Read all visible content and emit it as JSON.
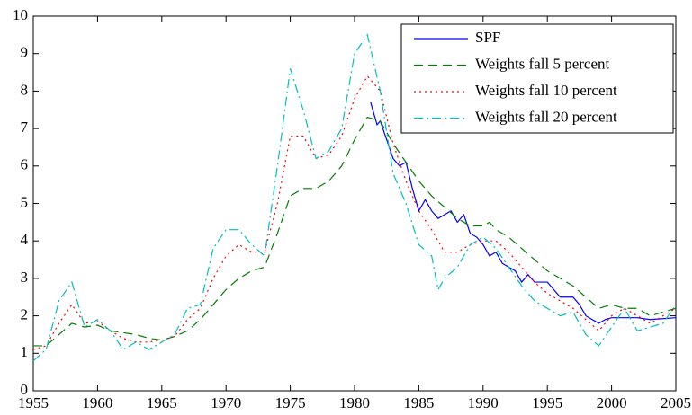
{
  "chart_data": {
    "type": "line",
    "xlim": [
      1955,
      2005
    ],
    "xticks": [
      1955,
      1960,
      1965,
      1970,
      1975,
      1980,
      1985,
      1990,
      1995,
      2000,
      2005
    ],
    "ylim": [
      0,
      10
    ],
    "yticks": [
      0,
      1,
      2,
      3,
      4,
      5,
      6,
      7,
      8,
      9,
      10
    ],
    "grid": false,
    "legend": "upper right",
    "series": [
      {
        "name": "SPF",
        "color": "#0000ff",
        "line_style": "solid",
        "x": [
          1981.25,
          1981.75,
          1982,
          1982.5,
          1983,
          1983.5,
          1984,
          1984.5,
          1985,
          1985.5,
          1986,
          1986.5,
          1987,
          1987.5,
          1988,
          1988.5,
          1989,
          1989.5,
          1990,
          1990.5,
          1991,
          1991.5,
          1992,
          1992.5,
          1993,
          1993.5,
          1994,
          1995,
          1995.5,
          1996,
          1997,
          1997.5,
          1998,
          1999,
          1999.5,
          2000,
          2002,
          2003,
          2005
        ],
        "values": [
          7.7,
          7.1,
          7.2,
          6.7,
          6.2,
          6.0,
          6.1,
          5.4,
          4.8,
          5.1,
          4.8,
          4.6,
          4.7,
          4.8,
          4.5,
          4.7,
          4.2,
          4.1,
          3.9,
          3.6,
          3.7,
          3.4,
          3.3,
          3.2,
          2.9,
          3.1,
          2.9,
          2.9,
          2.7,
          2.5,
          2.5,
          2.3,
          2.0,
          1.8,
          1.9,
          1.95,
          1.95,
          1.9,
          1.95
        ]
      },
      {
        "name": "Weights fall 5 percent",
        "color": "#007f00",
        "line_style": "dashed",
        "x": [
          1955,
          1956,
          1957,
          1958,
          1959,
          1960,
          1961,
          1962,
          1963,
          1964,
          1965,
          1966,
          1967,
          1968,
          1969,
          1970,
          1971,
          1972,
          1973,
          1974,
          1975,
          1976,
          1977,
          1978,
          1979,
          1980,
          1981,
          1982,
          1983,
          1984,
          1985,
          1986,
          1987,
          1988,
          1989,
          1990,
          1990.5,
          1991,
          1992,
          1993,
          1994,
          1995,
          1996,
          1997,
          1998,
          1999,
          2000,
          2001,
          2002,
          2003,
          2004,
          2005
        ],
        "values": [
          1.2,
          1.2,
          1.5,
          1.8,
          1.7,
          1.75,
          1.6,
          1.55,
          1.5,
          1.4,
          1.35,
          1.45,
          1.6,
          1.9,
          2.3,
          2.7,
          3.0,
          3.2,
          3.3,
          4.2,
          5.2,
          5.4,
          5.4,
          5.6,
          6.0,
          6.7,
          7.3,
          7.2,
          6.6,
          6.1,
          5.6,
          5.2,
          4.9,
          4.6,
          4.4,
          4.4,
          4.5,
          4.3,
          4.1,
          3.8,
          3.5,
          3.2,
          3.0,
          2.8,
          2.5,
          2.2,
          2.3,
          2.2,
          2.2,
          2.0,
          2.1,
          2.2
        ]
      },
      {
        "name": "Weights fall 10 percent",
        "color": "#ff0000",
        "line_style": "dotted",
        "x": [
          1955,
          1956,
          1957,
          1958,
          1959,
          1960,
          1961,
          1962,
          1963,
          1964,
          1965,
          1966,
          1967,
          1968,
          1969,
          1970,
          1971,
          1972,
          1973,
          1974,
          1975,
          1976,
          1977,
          1978,
          1979,
          1980,
          1981,
          1982,
          1983,
          1984,
          1985,
          1986,
          1987,
          1988,
          1989,
          1990,
          1991,
          1992,
          1993,
          1994,
          1995,
          1996,
          1997,
          1998,
          1999,
          2000,
          2001,
          2002,
          2003,
          2004,
          2005
        ],
        "values": [
          1.1,
          1.2,
          1.8,
          2.3,
          1.8,
          1.85,
          1.6,
          1.4,
          1.3,
          1.3,
          1.35,
          1.45,
          1.9,
          2.2,
          3.0,
          3.6,
          3.9,
          3.7,
          3.7,
          5.0,
          6.8,
          6.8,
          6.2,
          6.3,
          6.8,
          7.8,
          8.4,
          8.0,
          6.6,
          5.6,
          4.8,
          4.3,
          3.7,
          3.7,
          3.9,
          4.0,
          4.0,
          3.7,
          3.3,
          2.9,
          2.6,
          2.4,
          2.2,
          1.9,
          1.6,
          2.0,
          2.2,
          2.0,
          1.8,
          2.0,
          2.2
        ]
      },
      {
        "name": "Weights fall 20 percent",
        "color": "#00bfbf",
        "line_style": "dashdot",
        "x": [
          1955,
          1956,
          1957,
          1958,
          1959,
          1960,
          1961,
          1962,
          1963,
          1964,
          1965,
          1966,
          1967,
          1968,
          1969,
          1970,
          1971,
          1972,
          1973,
          1974,
          1975,
          1976,
          1977,
          1978,
          1979,
          1980,
          1981,
          1982,
          1983,
          1984,
          1985,
          1986,
          1986.5,
          1987,
          1988,
          1989,
          1990,
          1991,
          1992,
          1993,
          1994,
          1995,
          1996,
          1997,
          1998,
          1999,
          2000,
          2001,
          2002,
          2003,
          2004,
          2005
        ],
        "values": [
          0.8,
          1.1,
          2.4,
          2.9,
          1.7,
          1.9,
          1.6,
          1.1,
          1.3,
          1.1,
          1.3,
          1.5,
          2.2,
          2.3,
          3.8,
          4.3,
          4.3,
          3.9,
          3.6,
          6.0,
          8.6,
          7.5,
          6.2,
          6.4,
          7.0,
          9.0,
          9.5,
          8.0,
          5.8,
          5.0,
          3.9,
          3.6,
          2.7,
          3.0,
          3.3,
          3.9,
          4.1,
          3.8,
          3.3,
          2.8,
          2.4,
          2.2,
          2.0,
          2.1,
          1.5,
          1.2,
          1.7,
          2.2,
          1.6,
          1.7,
          1.8,
          2.3
        ]
      }
    ]
  }
}
